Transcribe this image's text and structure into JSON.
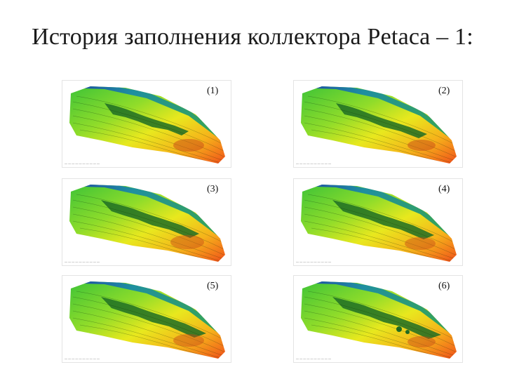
{
  "title": "История заполнения коллектора Petaca – 1:",
  "panels": [
    {
      "label": "(1)"
    },
    {
      "label": "(2)"
    },
    {
      "label": "(3)"
    },
    {
      "label": "(4)"
    },
    {
      "label": "(5)"
    },
    {
      "label": "(6)"
    }
  ]
}
